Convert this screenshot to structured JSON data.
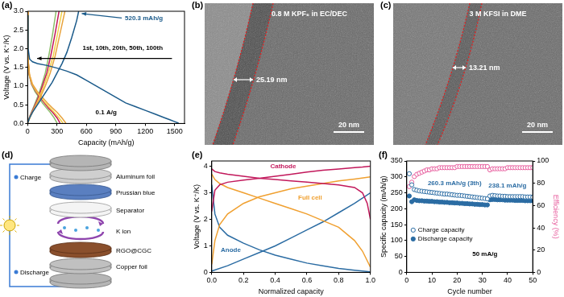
{
  "chart_data": [
    {
      "type": "line",
      "title": "(a)",
      "x_label": "Capacity (mAh/g)",
      "y_label": "Voltage (V vs. K⁺/K)",
      "xlim": [
        0,
        1600
      ],
      "xticks": [
        0,
        300,
        600,
        900,
        1200,
        1500
      ],
      "ylim": [
        0,
        3
      ],
      "yticks": [
        {
          "value": 0,
          "label": "0.0"
        },
        {
          "value": 0.5,
          "label": "0.5"
        },
        {
          "value": 1,
          "label": "1.0"
        },
        {
          "value": 1.5,
          "label": "1.5"
        },
        {
          "value": 2,
          "label": "2.0"
        },
        {
          "value": 2.5,
          "label": "2.5"
        },
        {
          "value": 3,
          "label": "3.0"
        }
      ],
      "grid": false,
      "annotations": [
        {
          "text": "520.3 mAh/g",
          "color": "#1a5a8a"
        },
        {
          "text": "1st, 10th, 20th, 50th, 100th",
          "color": "#000000"
        },
        {
          "text": "0.1 A/g",
          "color": "#000000"
        }
      ],
      "series": [
        {
          "color": "#1a5a8a",
          "x": [
            0,
            5,
            20,
            50,
            100,
            200,
            300,
            400,
            500,
            600,
            700,
            800,
            900,
            1000,
            1100,
            1200,
            1300,
            1400,
            1450,
            1500,
            1540
          ],
          "values": [
            2.9,
            2.0,
            1.72,
            1.65,
            1.6,
            1.55,
            1.48,
            1.4,
            1.3,
            1.15,
            1.0,
            0.85,
            0.7,
            0.55,
            0.45,
            0.35,
            0.25,
            0.15,
            0.1,
            0.05,
            0.01
          ]
        },
        {
          "color": "#1a5a8a",
          "x": [
            0,
            20,
            50,
            100,
            150,
            200,
            250,
            300,
            350,
            400,
            450,
            500,
            520.3
          ],
          "values": [
            0.01,
            0.15,
            0.3,
            0.5,
            0.7,
            0.9,
            1.1,
            1.35,
            1.6,
            1.9,
            2.3,
            2.75,
            3.0
          ]
        },
        {
          "color": "#e8a33d",
          "x": [
            0,
            5,
            20,
            50,
            100,
            150,
            200,
            250,
            300,
            350,
            390
          ],
          "values": [
            3.0,
            1.7,
            1.3,
            1.05,
            0.85,
            0.7,
            0.55,
            0.42,
            0.3,
            0.15,
            0.01
          ]
        },
        {
          "color": "#e8a33d",
          "x": [
            0,
            30,
            80,
            130,
            180,
            230,
            280,
            330,
            380
          ],
          "values": [
            0.01,
            0.2,
            0.45,
            0.7,
            1.0,
            1.35,
            1.8,
            2.4,
            3.0
          ]
        },
        {
          "color": "#f2d04a",
          "x": [
            0,
            5,
            18,
            45,
            90,
            135,
            180,
            225,
            270,
            320,
            360
          ],
          "values": [
            3.0,
            1.7,
            1.3,
            1.05,
            0.85,
            0.7,
            0.55,
            0.42,
            0.3,
            0.15,
            0.01
          ]
        },
        {
          "color": "#f2d04a",
          "x": [
            0,
            28,
            75,
            120,
            165,
            210,
            260,
            305,
            350
          ],
          "values": [
            0.01,
            0.2,
            0.45,
            0.7,
            1.0,
            1.35,
            1.8,
            2.4,
            3.0
          ]
        },
        {
          "color": "#c2185b",
          "x": [
            0,
            5,
            17,
            42,
            85,
            125,
            170,
            210,
            255,
            300,
            330
          ],
          "values": [
            3.0,
            1.7,
            1.3,
            1.05,
            0.85,
            0.7,
            0.55,
            0.42,
            0.3,
            0.15,
            0.01
          ]
        },
        {
          "color": "#c2185b",
          "x": [
            0,
            25,
            68,
            110,
            150,
            195,
            235,
            280,
            320
          ],
          "values": [
            0.01,
            0.2,
            0.45,
            0.7,
            1.0,
            1.35,
            1.8,
            2.4,
            3.0
          ]
        },
        {
          "color": "#8dbf6a",
          "x": [
            0,
            4,
            15,
            38,
            75,
            115,
            150,
            190,
            230,
            270,
            300
          ],
          "values": [
            3.0,
            1.7,
            1.3,
            1.05,
            0.85,
            0.7,
            0.55,
            0.42,
            0.3,
            0.15,
            0.01
          ]
        },
        {
          "color": "#8dbf6a",
          "x": [
            0,
            23,
            62,
            100,
            140,
            180,
            215,
            255,
            290
          ],
          "values": [
            0.01,
            0.2,
            0.45,
            0.7,
            1.0,
            1.35,
            1.8,
            2.4,
            3.0
          ]
        }
      ]
    },
    {
      "type": "line",
      "title": "(e)",
      "x_label": "Normalized capacity",
      "y_label": "Voltage (V vs. K⁺/K)",
      "xlim": [
        0,
        1
      ],
      "xticks": [
        {
          "value": 0,
          "label": "0.0"
        },
        {
          "value": 0.2,
          "label": "0.2"
        },
        {
          "value": 0.4,
          "label": "0.4"
        },
        {
          "value": 0.6,
          "label": "0.6"
        },
        {
          "value": 0.8,
          "label": "0.8"
        },
        {
          "value": 1,
          "label": "1.0"
        }
      ],
      "ylim": [
        0,
        4.2
      ],
      "yticks": [
        0,
        1,
        2,
        3,
        4
      ],
      "grid": false,
      "annotations": [
        {
          "text": "Cathode",
          "color": "#c2185b"
        },
        {
          "text": "Full cell",
          "color": "#f0a030"
        },
        {
          "text": "Anode",
          "color": "#2b6ca3"
        }
      ],
      "series": [
        {
          "color": "#c2185b",
          "x": [
            0,
            0.02,
            0.05,
            0.1,
            0.2,
            0.3,
            0.4,
            0.5,
            0.6,
            0.7,
            0.8,
            0.9,
            0.95,
            1.0
          ],
          "values": [
            2.3,
            3.1,
            3.3,
            3.4,
            3.48,
            3.55,
            3.62,
            3.7,
            3.78,
            3.85,
            3.9,
            3.95,
            3.97,
            4.0
          ]
        },
        {
          "color": "#c2185b",
          "x": [
            0,
            0.02,
            0.05,
            0.1,
            0.2,
            0.3,
            0.4,
            0.5,
            0.6,
            0.7,
            0.8,
            0.9,
            0.95,
            0.98,
            1.0
          ],
          "values": [
            3.9,
            3.8,
            3.75,
            3.7,
            3.62,
            3.55,
            3.5,
            3.45,
            3.4,
            3.35,
            3.3,
            3.2,
            3.0,
            2.6,
            2.0
          ]
        },
        {
          "color": "#f0a030",
          "x": [
            0,
            0.02,
            0.05,
            0.1,
            0.2,
            0.3,
            0.4,
            0.5,
            0.6,
            0.7,
            0.8,
            0.9,
            1.0
          ],
          "values": [
            0.3,
            1.2,
            1.8,
            2.2,
            2.6,
            2.85,
            3.0,
            3.15,
            3.25,
            3.35,
            3.45,
            3.52,
            3.6
          ]
        },
        {
          "color": "#f0a030",
          "x": [
            0,
            0.02,
            0.05,
            0.1,
            0.2,
            0.3,
            0.4,
            0.5,
            0.6,
            0.7,
            0.8,
            0.9,
            0.95,
            1.0
          ],
          "values": [
            3.7,
            3.5,
            3.35,
            3.2,
            3.0,
            2.8,
            2.6,
            2.4,
            2.2,
            1.95,
            1.7,
            1.2,
            0.8,
            0.2
          ]
        },
        {
          "color": "#2b6ca3",
          "x": [
            0,
            0.1,
            0.2,
            0.3,
            0.4,
            0.5,
            0.6,
            0.7,
            0.8,
            0.9,
            1.0
          ],
          "values": [
            0.05,
            0.25,
            0.5,
            0.75,
            1.0,
            1.3,
            1.6,
            1.9,
            2.25,
            2.6,
            3.0
          ]
        },
        {
          "color": "#2b6ca3",
          "x": [
            0,
            0.02,
            0.05,
            0.1,
            0.2,
            0.3,
            0.4,
            0.5,
            0.6,
            0.7,
            0.8,
            0.9,
            1.0
          ],
          "values": [
            3.3,
            2.2,
            1.7,
            1.4,
            1.1,
            0.85,
            0.65,
            0.5,
            0.35,
            0.25,
            0.15,
            0.08,
            0.02
          ]
        }
      ]
    },
    {
      "type": "scatter",
      "title": "(f)",
      "x_label": "Cycle number",
      "y_label": "Specific capacity (mAh/g)",
      "y2_label": "Efficiency (%)",
      "xlim": [
        0,
        50
      ],
      "xticks": [
        0,
        10,
        20,
        30,
        40,
        50
      ],
      "ylim": [
        0,
        350
      ],
      "yticks": [
        0,
        50,
        100,
        150,
        200,
        250,
        300,
        350
      ],
      "y2lim": [
        0,
        100
      ],
      "y2ticks": [
        0,
        20,
        40,
        60,
        80,
        100
      ],
      "grid": false,
      "legend": "lower left",
      "annotations": [
        {
          "text": "260.3 mAh/g (3th)",
          "color": "#2b6ca3"
        },
        {
          "text": "238.1 mAh/g",
          "color": "#2b6ca3"
        },
        {
          "text": "50 mA/g",
          "color": "#000000"
        }
      ],
      "x": [
        1,
        2,
        3,
        4,
        5,
        6,
        7,
        8,
        9,
        10,
        11,
        12,
        13,
        14,
        15,
        16,
        17,
        18,
        19,
        20,
        21,
        22,
        23,
        24,
        25,
        26,
        27,
        28,
        29,
        30,
        31,
        32,
        33,
        34,
        35,
        36,
        37,
        38,
        39,
        40,
        41,
        42,
        43,
        44,
        45,
        46,
        47,
        48,
        49,
        50
      ],
      "series": [
        {
          "name": "Charge capacity",
          "color": "#2b6ca3",
          "marker": "open circle",
          "values": [
            310,
            275,
            260.3,
            258,
            256,
            255,
            254,
            253,
            252,
            251,
            250,
            249,
            248,
            247,
            246,
            246,
            245,
            244,
            243,
            242,
            242,
            241,
            240,
            239,
            238,
            237,
            236,
            235,
            234,
            233,
            232,
            231,
            240,
            242,
            241,
            240,
            240,
            239,
            239,
            238,
            238,
            238,
            238,
            238,
            238.1,
            238,
            237,
            237,
            237,
            236
          ]
        },
        {
          "name": "Discharge capacity",
          "color": "#2b6ca3",
          "marker": "circle",
          "values": [
            240,
            222,
            228,
            226,
            225,
            225,
            224,
            224,
            223,
            223,
            222,
            222,
            221,
            221,
            220,
            220,
            219,
            219,
            218,
            218,
            217,
            217,
            216,
            216,
            215,
            215,
            214,
            214,
            213,
            213,
            212,
            212,
            228,
            229,
            229,
            228,
            228,
            228,
            227,
            227,
            227,
            227,
            226,
            226,
            226,
            226,
            225,
            225,
            225,
            225
          ]
        },
        {
          "color": "#e75b9c",
          "marker": "open circle",
          "axis": "y2",
          "values": [
            77,
            81,
            86,
            88,
            89,
            90,
            91,
            92,
            92,
            93,
            93,
            93,
            94,
            94,
            94,
            94,
            94,
            94,
            94,
            95,
            95,
            95,
            95,
            95,
            95,
            95,
            95,
            95,
            95,
            95,
            95,
            95,
            92,
            93,
            93,
            93,
            93,
            93,
            93,
            94,
            94,
            94,
            94,
            94,
            94,
            94,
            94,
            94,
            94,
            94
          ]
        }
      ]
    }
  ],
  "images": [
    {
      "label": "(b)",
      "caption": "0.8 M KPF₆ in EC/DEC",
      "thickness": "25.19 nm",
      "scale_bar": "20 nm"
    },
    {
      "label": "(c)",
      "caption": "3 M KFSI in DME",
      "thickness": "13.21 nm",
      "scale_bar": "20 nm"
    }
  ],
  "diagram": {
    "label": "(d)",
    "circuit": [
      "Charge",
      "Discharge"
    ],
    "layers": [
      "Aluminum foil",
      "Prussian blue",
      "Separator",
      "K ion",
      "RGO@CGC",
      "Copper foil"
    ]
  }
}
